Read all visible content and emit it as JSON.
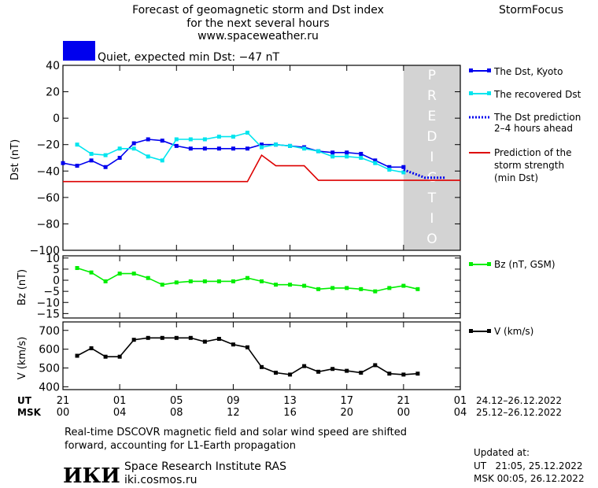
{
  "header": {
    "title_line1": "Forecast of geomagnetic storm and Dst index",
    "title_line2": "for the next several hours",
    "url": "www.spaceweather.ru",
    "brand": "StormFocus",
    "status_text": "Quiet, expected min Dst: −47 nT",
    "status_color": "#0000ee"
  },
  "footer": {
    "note_line1": "Real-time DSCOVR magnetic field and solar wind speed are shifted",
    "note_line2": "forward, accounting for L1-Earth propagation",
    "logo_text": "ИКИ",
    "institute": "Space Research Institute RAS",
    "site": "iki.cosmos.ru",
    "updated_label": "Updated at:",
    "updated_ut": "UT   21:05, 25.12.2022",
    "updated_msk": "MSK 00:05, 26.12.2022"
  },
  "time_axis": {
    "ut_label": "UT",
    "msk_label": "MSK",
    "ticks": [
      0,
      4,
      8,
      12,
      16,
      20,
      24,
      28
    ],
    "ut_labels": [
      "21",
      "01",
      "05",
      "09",
      "13",
      "17",
      "21",
      "01"
    ],
    "msk_labels": [
      "00",
      "04",
      "08",
      "12",
      "16",
      "20",
      "00",
      "04"
    ],
    "ut_range": "24.12–26.12.2022",
    "msk_range": "25.12–26.12.2022",
    "xlim": [
      0,
      28
    ]
  },
  "chart_data": [
    {
      "type": "line",
      "ylabel": "Dst (nT)",
      "ylim": [
        -100,
        40
      ],
      "yticks": [
        40,
        20,
        0,
        -20,
        -40,
        -60,
        -80,
        -100
      ],
      "prediction_zone": {
        "x": [
          24,
          28
        ],
        "label": "PREDICTION"
      },
      "series": [
        {
          "name": "The Dst, Kyoto",
          "color": "#0000ee",
          "marker": "square",
          "x": [
            0,
            1,
            2,
            3,
            4,
            5,
            6,
            7,
            8,
            9,
            10,
            11,
            12,
            13,
            14,
            15,
            16,
            17,
            18,
            19,
            20,
            21,
            22,
            23,
            24
          ],
          "values": [
            -34,
            -36,
            -32,
            -37,
            -30,
            -19,
            -16,
            -17,
            -21,
            -23,
            -23,
            -23,
            -23,
            -23,
            -20,
            -20,
            -21,
            -22,
            -25,
            -26,
            -26,
            -27,
            -32,
            -37,
            -37
          ]
        },
        {
          "name": "The recovered Dst",
          "color": "#00e5ee",
          "marker": "square",
          "x": [
            1,
            2,
            3,
            4,
            5,
            6,
            7,
            8,
            9,
            10,
            11,
            12,
            13,
            14,
            15,
            16,
            17,
            18,
            19,
            20,
            21,
            22,
            23,
            24
          ],
          "values": [
            -20,
            -27,
            -28,
            -23,
            -23,
            -29,
            -32,
            -16,
            -16,
            -16,
            -14,
            -14,
            -11,
            -22,
            -20,
            -21,
            -23,
            -25,
            -29,
            -29,
            -30,
            -34,
            -39,
            -41
          ]
        },
        {
          "name": "The Dst prediction\n2–4 hours ahead",
          "color": "#0000ee",
          "style": "dotted",
          "x": [
            24,
            24.5,
            25,
            25.5,
            26,
            26.5,
            27
          ],
          "values": [
            -39,
            -41,
            -43,
            -45,
            -45,
            -45,
            -45
          ]
        },
        {
          "name": "Prediction of the\nstorm strength\n(min Dst)",
          "color": "#dd0000",
          "style": "step",
          "x": [
            0,
            1,
            2,
            3,
            4,
            5,
            6,
            7,
            8,
            9,
            10,
            11,
            12,
            13,
            14,
            15,
            16,
            17,
            18,
            19,
            20,
            21,
            22,
            23,
            24,
            25,
            26,
            27,
            28
          ],
          "values": [
            -48,
            -48,
            -48,
            -48,
            -48,
            -48,
            -48,
            -48,
            -48,
            -48,
            -48,
            -48,
            -48,
            -48,
            -28,
            -36,
            -36,
            -36,
            -47,
            -47,
            -47,
            -47,
            -47,
            -47,
            -47,
            -47,
            -47,
            -47,
            -47
          ]
        }
      ]
    },
    {
      "type": "line",
      "ylabel": "Bz (nT)",
      "ylim": [
        -17,
        11
      ],
      "yticks": [
        10,
        5,
        0,
        -5,
        -10,
        -15
      ],
      "series": [
        {
          "name": "Bz (nT, GSM)",
          "color": "#00ee00",
          "marker": "square",
          "x": [
            1,
            2,
            3,
            4,
            5,
            6,
            7,
            8,
            9,
            10,
            11,
            12,
            13,
            14,
            15,
            16,
            17,
            18,
            19,
            20,
            21,
            22,
            23,
            24,
            25
          ],
          "values": [
            5.5,
            3.5,
            -0.5,
            3,
            3,
            1,
            -2,
            -1,
            -0.5,
            -0.5,
            -0.5,
            -0.5,
            1,
            -0.5,
            -2,
            -2,
            -2.5,
            -4,
            -3.5,
            -3.5,
            -4,
            -5,
            -3.5,
            -2.5,
            -4
          ]
        }
      ]
    },
    {
      "type": "line",
      "ylabel": "V (km/s)",
      "ylim": [
        385,
        745
      ],
      "yticks": [
        700,
        600,
        500,
        400
      ],
      "series": [
        {
          "name": "V (km/s)",
          "color": "#000000",
          "marker": "square",
          "x": [
            1,
            2,
            3,
            4,
            5,
            6,
            7,
            8,
            9,
            10,
            11,
            12,
            13,
            14,
            15,
            16,
            17,
            18,
            19,
            20,
            21,
            22,
            23,
            24,
            25
          ],
          "values": [
            565,
            605,
            560,
            560,
            650,
            660,
            660,
            660,
            660,
            640,
            655,
            625,
            610,
            505,
            475,
            465,
            510,
            480,
            495,
            485,
            475,
            515,
            470,
            465,
            470
          ]
        }
      ]
    }
  ]
}
